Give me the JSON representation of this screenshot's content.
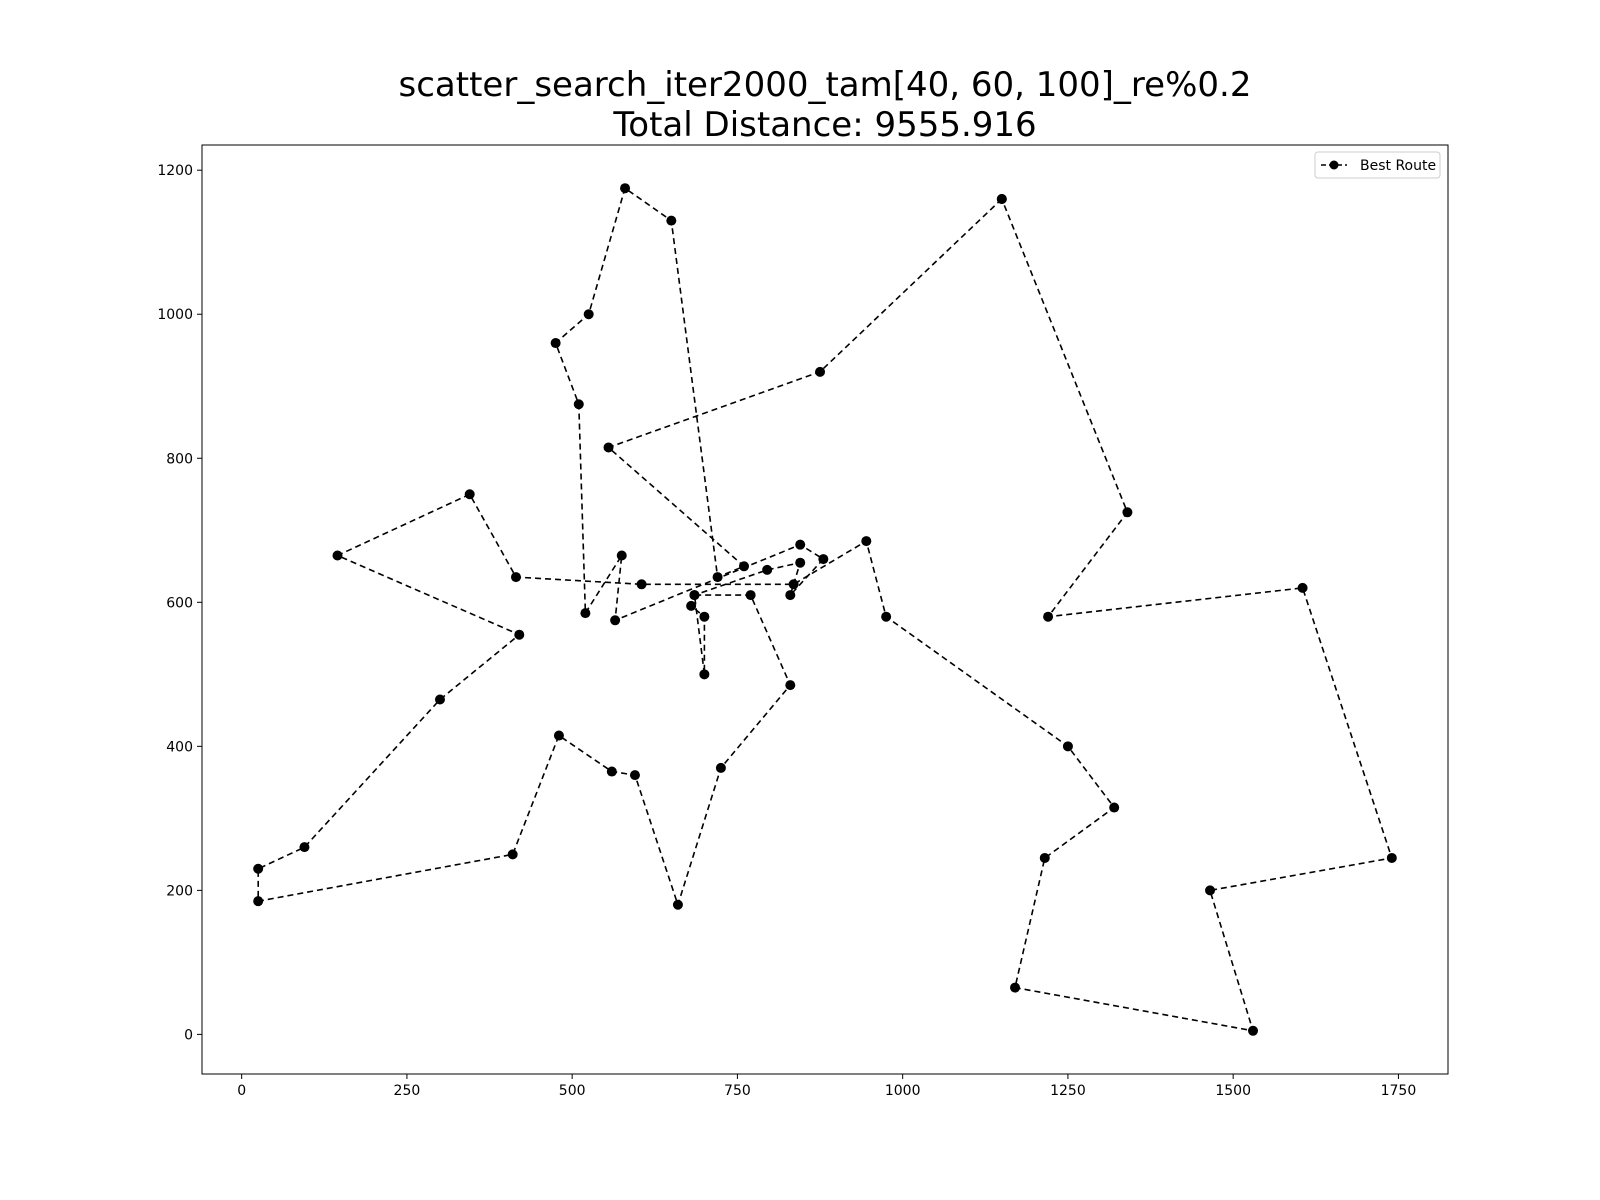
{
  "chart_data": {
    "type": "line",
    "title": "scatter_search_iter2000_tam[40, 60, 100]_re%0.2",
    "subtitle": "Total Distance: 9555.916",
    "xlabel": "",
    "ylabel": "",
    "xlim": [
      -60,
      1825
    ],
    "ylim": [
      -55,
      1235
    ],
    "x_ticks": [
      0,
      250,
      500,
      750,
      1000,
      1250,
      1500,
      1750
    ],
    "y_ticks": [
      0,
      200,
      400,
      600,
      800,
      1000,
      1200
    ],
    "x_tick_labels": [
      "0",
      "250",
      "500",
      "750",
      "1000",
      "1250",
      "1500",
      "1750"
    ],
    "y_tick_labels": [
      "0",
      "200",
      "400",
      "600",
      "800",
      "1000",
      "1200"
    ],
    "grid": false,
    "legend": {
      "position": "top-right",
      "entries": [
        "Best Route"
      ]
    },
    "series": [
      {
        "name": "Best Route",
        "color": "#000000",
        "line_style": "dashed",
        "marker": "circle",
        "x": [
          1150,
          875,
          555,
          760,
          720,
          650,
          580,
          525,
          475,
          510,
          520,
          575,
          565,
          845,
          880,
          830,
          845,
          795,
          685,
          680,
          700,
          700,
          685,
          770,
          830,
          725,
          660,
          595,
          560,
          480,
          410,
          25,
          25,
          95,
          300,
          420,
          145,
          345,
          415,
          605,
          835,
          945,
          975,
          1250,
          1320,
          1215,
          1170,
          1530,
          1465,
          1740,
          1605,
          1220,
          1340,
          1150
        ],
        "y": [
          1160,
          920,
          815,
          650,
          635,
          1130,
          1175,
          1000,
          960,
          875,
          585,
          665,
          575,
          680,
          660,
          610,
          655,
          645,
          610,
          595,
          580,
          500,
          610,
          610,
          485,
          370,
          180,
          360,
          365,
          415,
          250,
          185,
          230,
          260,
          465,
          555,
          665,
          750,
          635,
          625,
          625,
          685,
          580,
          400,
          315,
          245,
          65,
          5,
          200,
          245,
          620,
          580,
          725,
          1160
        ]
      }
    ]
  }
}
